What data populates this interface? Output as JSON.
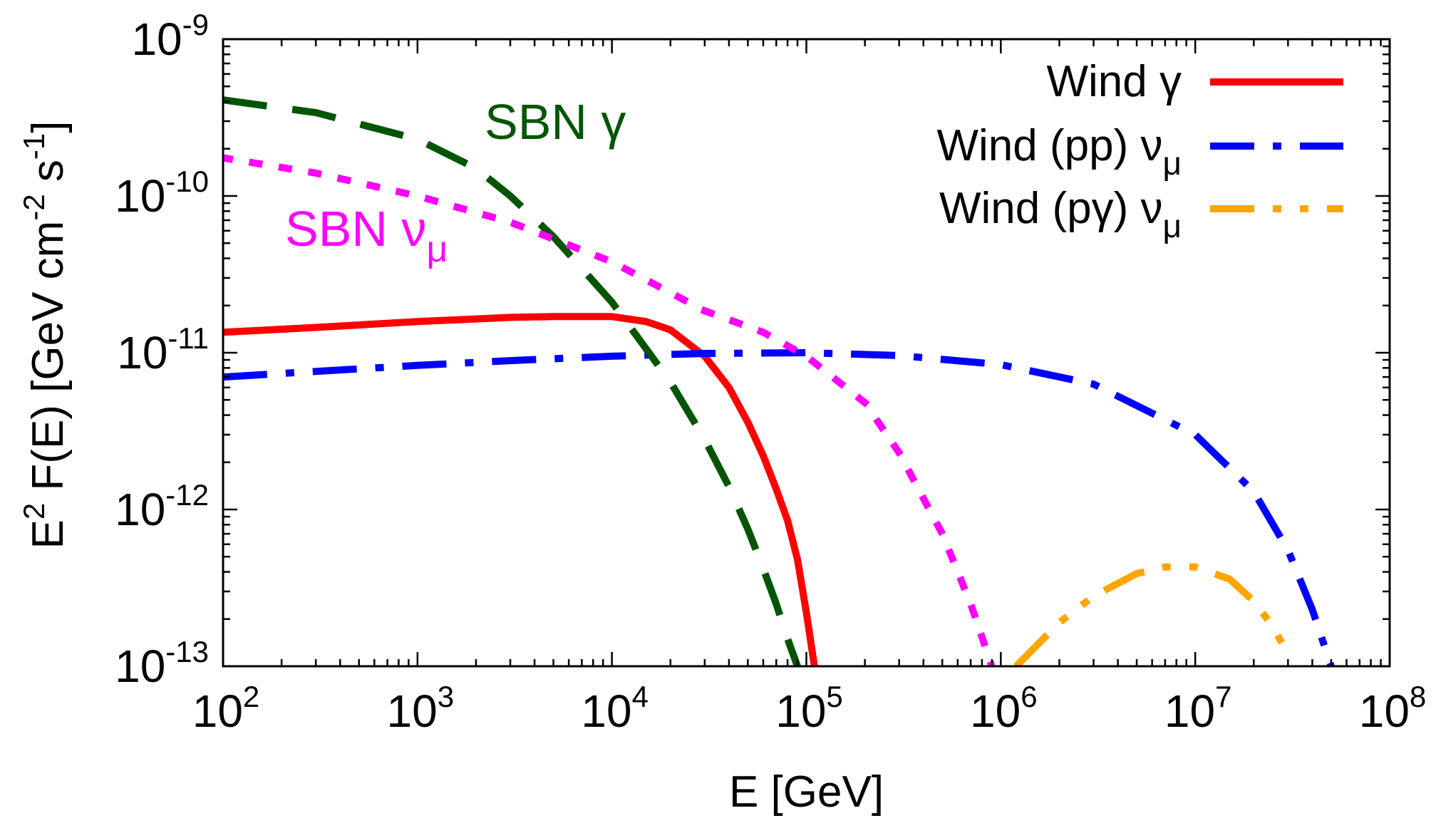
{
  "chart_data": {
    "type": "line",
    "title": "",
    "xlabel": "E [GeV]",
    "ylabel": {
      "parts": [
        "E",
        "2",
        " F(E) [GeV cm",
        "-2",
        " s",
        "-1",
        "]"
      ]
    },
    "x_scale": "log",
    "y_scale": "log",
    "xlim": [
      100,
      100000000
    ],
    "ylim": [
      1e-13,
      1e-09
    ],
    "x_ticks": [
      {
        "base": "10",
        "exp": "2",
        "value": 100
      },
      {
        "base": "10",
        "exp": "3",
        "value": 1000
      },
      {
        "base": "10",
        "exp": "4",
        "value": 10000
      },
      {
        "base": "10",
        "exp": "5",
        "value": 100000
      },
      {
        "base": "10",
        "exp": "6",
        "value": 1000000
      },
      {
        "base": "10",
        "exp": "7",
        "value": 10000000
      },
      {
        "base": "10",
        "exp": "8",
        "value": 100000000
      }
    ],
    "y_ticks": [
      {
        "base": "10",
        "exp": "-13",
        "value": 1e-13
      },
      {
        "base": "10",
        "exp": "-12",
        "value": 1e-12
      },
      {
        "base": "10",
        "exp": "-11",
        "value": 1e-11
      },
      {
        "base": "10",
        "exp": "-10",
        "value": 1e-10
      },
      {
        "base": "10",
        "exp": "-9",
        "value": 1e-09
      }
    ],
    "legend_position": "top-right",
    "series": [
      {
        "name": "Wind γ",
        "legend_base": "Wind γ",
        "legend_sub": "",
        "color": "#ff0000",
        "style": "solid",
        "in_legend": true,
        "x": [
          100,
          300,
          1000,
          3000,
          5000,
          10000,
          15000,
          20000,
          30000,
          40000,
          50000,
          60000,
          70000,
          80000,
          90000,
          100000,
          110000
        ],
        "y": [
          1.35e-11,
          1.45e-11,
          1.58e-11,
          1.68e-11,
          1.7e-11,
          1.7e-11,
          1.58e-11,
          1.4e-11,
          9.5e-12,
          6e-12,
          3.6e-12,
          2.2e-12,
          1.35e-12,
          8.5e-13,
          4.8e-13,
          2.2e-13,
          1e-13
        ]
      },
      {
        "name": "Wind (pp) ν",
        "legend_base": "Wind (pp) ν",
        "legend_sub": "μ",
        "color": "#0000ff",
        "style": "dashdot",
        "in_legend": true,
        "x": [
          100,
          300,
          1000,
          3000,
          10000,
          30000,
          100000,
          300000,
          1000000,
          3000000,
          10000000,
          20000000,
          30000000,
          40000000,
          50000000
        ],
        "y": [
          7e-12,
          7.6e-12,
          8.3e-12,
          8.9e-12,
          9.5e-12,
          9.9e-12,
          1e-11,
          9.6e-12,
          8.4e-12,
          6.3e-12,
          3e-12,
          1.3e-12,
          5.5e-13,
          2.3e-13,
          1e-13
        ]
      },
      {
        "name": "Wind (pγ) ν",
        "legend_base": "Wind (pγ) ν",
        "legend_sub": "μ",
        "color": "#ffa500",
        "style": "dashdotdot",
        "in_legend": true,
        "x": [
          1200000,
          2000000,
          3000000,
          5000000,
          7000000,
          10000000,
          15000000,
          20000000,
          25000000,
          30000000
        ],
        "y": [
          1e-13,
          1.9e-13,
          2.8e-13,
          3.9e-13,
          4.3e-13,
          4.3e-13,
          3.6e-13,
          2.6e-13,
          1.8e-13,
          1.2e-13
        ]
      },
      {
        "name": "SBN γ",
        "legend_base": "",
        "legend_sub": "",
        "color": "#005500",
        "style": "dashed",
        "in_legend": false,
        "x": [
          100,
          300,
          1000,
          2000,
          3000,
          5000,
          10000,
          20000,
          30000,
          40000,
          50000,
          60000,
          70000,
          80000,
          90000
        ],
        "y": [
          4.1e-10,
          3.4e-10,
          2.3e-10,
          1.5e-10,
          1e-10,
          5.5e-11,
          2.1e-11,
          6.5e-12,
          2.8e-12,
          1.4e-12,
          7.5e-13,
          4.2e-13,
          2.5e-13,
          1.5e-13,
          1e-13
        ]
      },
      {
        "name": "SBN ν",
        "legend_base": "",
        "legend_sub": "",
        "color": "#ff00ff",
        "style": "dotted",
        "in_legend": false,
        "x": [
          100,
          300,
          1000,
          3000,
          10000,
          30000,
          60000,
          100000,
          200000,
          300000,
          500000,
          700000,
          900000
        ],
        "y": [
          1.75e-10,
          1.4e-10,
          1e-10,
          6.8e-11,
          3.8e-11,
          1.85e-11,
          1.35e-11,
          9.5e-12,
          4.8e-12,
          2.3e-12,
          7e-13,
          2.5e-13,
          1e-13
        ]
      }
    ],
    "annotations": [
      {
        "text": "SBN γ",
        "sub": "",
        "color": "#005500"
      },
      {
        "text": "SBN ν",
        "sub": "μ",
        "color": "#ff00ff"
      }
    ]
  }
}
